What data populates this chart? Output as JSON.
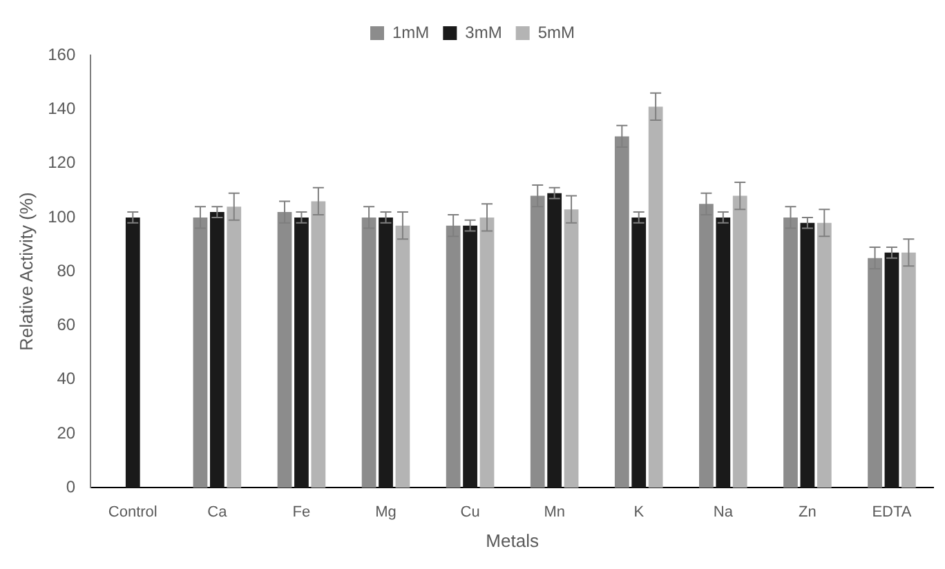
{
  "chart_data": {
    "type": "bar",
    "xlabel": "Metals",
    "ylabel": "Relative Activity (%)",
    "categories": [
      "Control",
      "Ca",
      "Fe",
      "Mg",
      "Cu",
      "Mn",
      "K",
      "Na",
      "Zn",
      "EDTA"
    ],
    "series": [
      {
        "name": "1mM",
        "color": "#8c8c8c",
        "values": [
          null,
          100,
          102,
          100,
          97,
          108,
          130,
          105,
          100,
          85
        ],
        "errors": [
          null,
          4,
          4,
          4,
          4,
          4,
          4,
          4,
          4,
          4
        ]
      },
      {
        "name": "3mM",
        "color": "#1a1a1a",
        "values": [
          100,
          102,
          100,
          100,
          97,
          109,
          100,
          100,
          98,
          87
        ],
        "errors": [
          2,
          2,
          2,
          2,
          2,
          2,
          2,
          2,
          2,
          2
        ]
      },
      {
        "name": "5mM",
        "color": "#b4b4b4",
        "values": [
          null,
          104,
          106,
          97,
          100,
          103,
          141,
          108,
          98,
          87
        ],
        "errors": [
          null,
          5,
          5,
          5,
          5,
          5,
          5,
          5,
          5,
          5
        ]
      }
    ],
    "ylim": [
      0,
      160
    ],
    "yticks": [
      0,
      20,
      40,
      60,
      80,
      100,
      120,
      140,
      160
    ],
    "grid": false,
    "legend": "top"
  }
}
